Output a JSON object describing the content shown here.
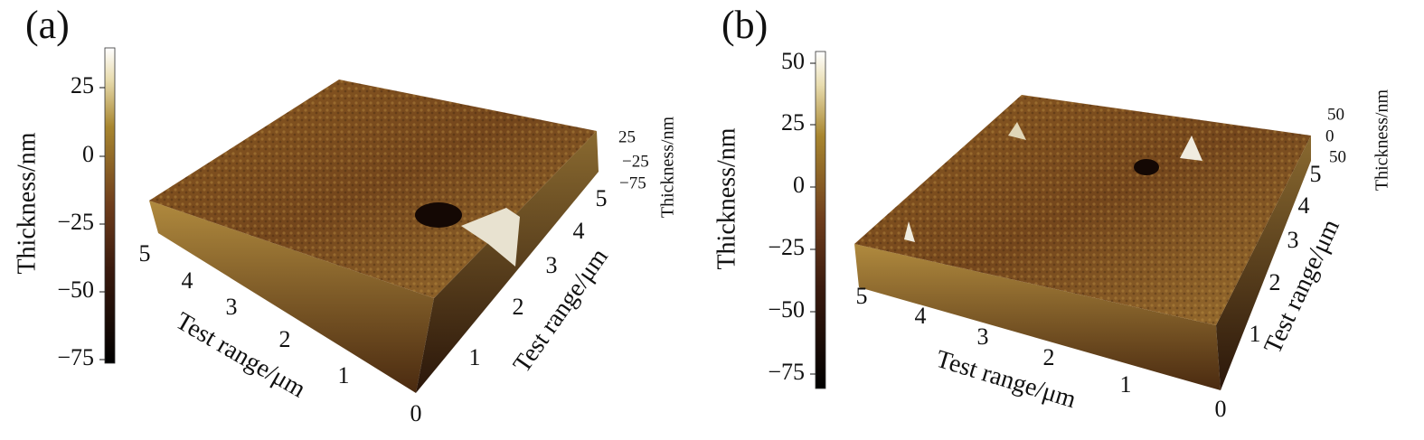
{
  "panels": [
    {
      "label": "(a)",
      "colorbar": {
        "title": "Thickness/nm",
        "ticks": [
          "25",
          "0",
          "−25",
          "−50",
          "−75"
        ]
      },
      "x_axis": {
        "title": "Test range/μm",
        "ticks": [
          "5",
          "4",
          "3",
          "2",
          "1",
          "0"
        ]
      },
      "y_axis": {
        "title": "Test range/μm",
        "ticks": [
          "1",
          "2",
          "3",
          "4",
          "5"
        ]
      },
      "z_axis": {
        "title": "Thickness/nm",
        "ticks": [
          "25",
          "−25",
          "−75"
        ]
      }
    },
    {
      "label": "(b)",
      "colorbar": {
        "title": "Thickness/nm",
        "ticks": [
          "50",
          "25",
          "0",
          "−25",
          "−50",
          "−75"
        ]
      },
      "x_axis": {
        "title": "Test range/μm",
        "ticks": [
          "5",
          "4",
          "3",
          "2",
          "1",
          "0"
        ]
      },
      "y_axis": {
        "title": "Test range/μm",
        "ticks": [
          "1",
          "2",
          "3",
          "4",
          "5"
        ]
      },
      "z_axis": {
        "title": "Thickness/nm",
        "ticks": [
          "50",
          "0",
          "50"
        ]
      }
    }
  ]
}
